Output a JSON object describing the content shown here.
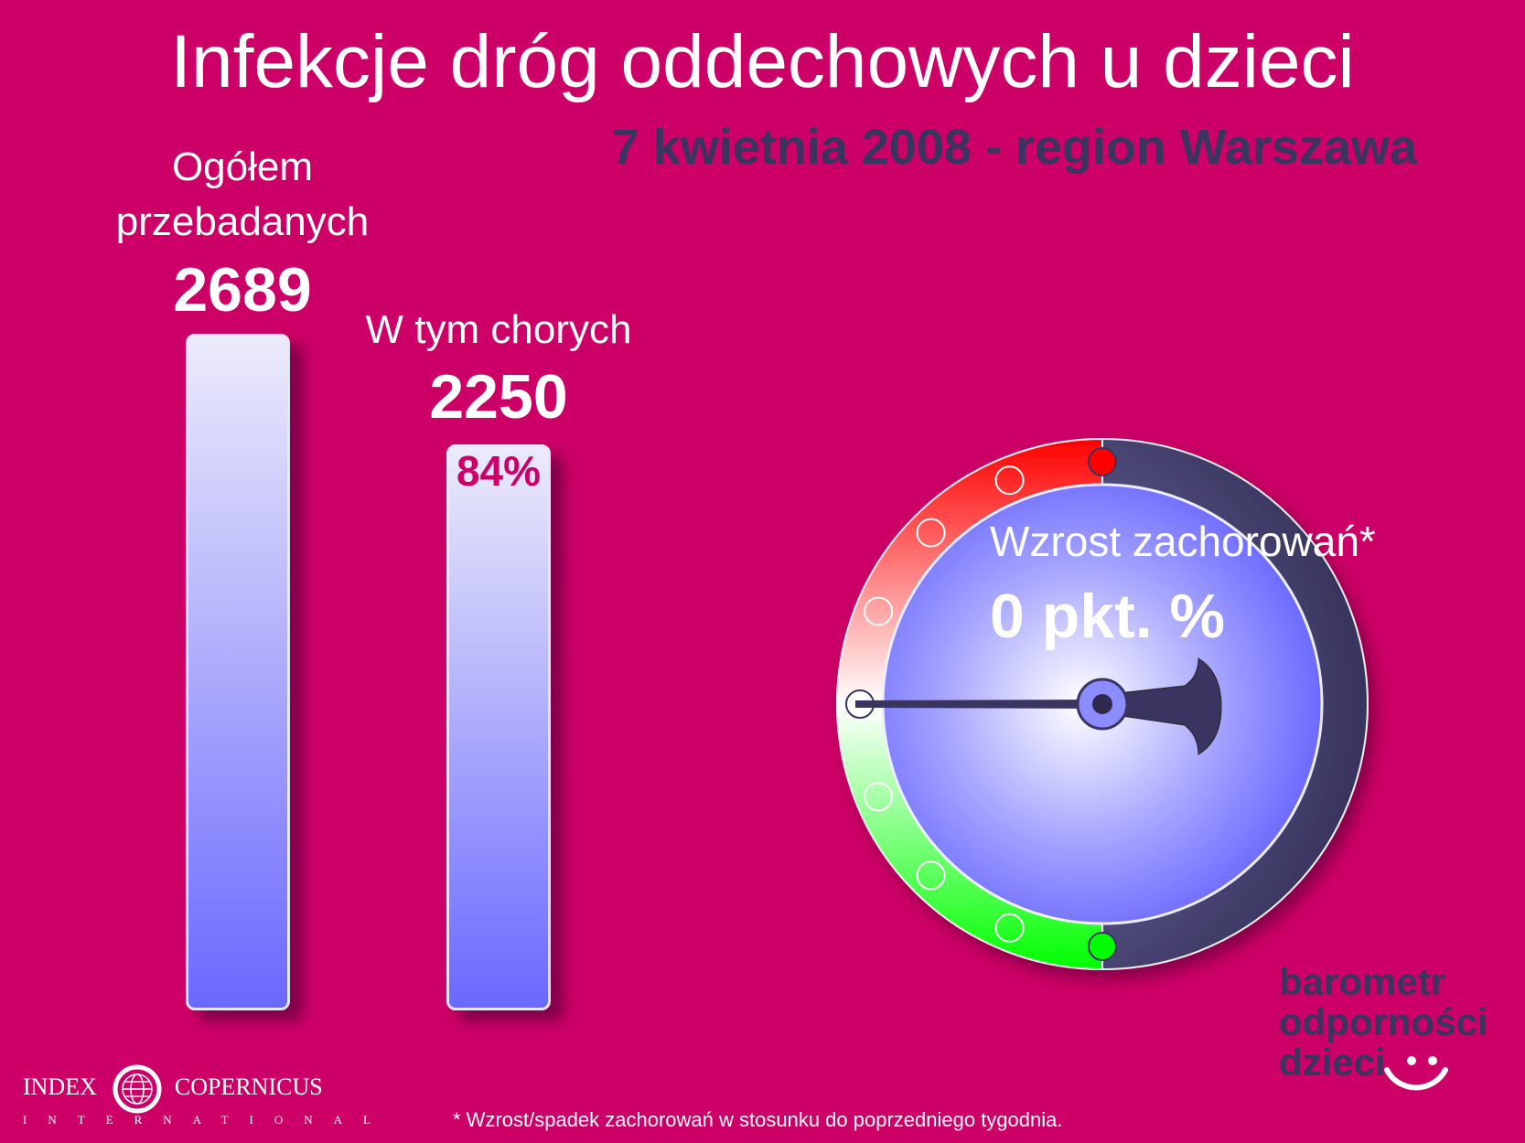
{
  "header": {
    "title": "Infekcje dróg oddechowych u dzieci",
    "subtitle": "7 kwietnia 2008 - region Warszawa"
  },
  "chart_data": [
    {
      "type": "bar",
      "categories": [
        "Ogółem przebadanych",
        "W tym chorych"
      ],
      "label_lines": [
        [
          "Ogółem",
          "przebadanych"
        ],
        [
          "W tym chorych"
        ]
      ],
      "values": [
        2689,
        2250
      ],
      "value_labels": [
        "2689",
        "2250"
      ],
      "percent_label": "84%",
      "percent_value": 84
    },
    {
      "type": "gauge",
      "caption": "Wzrost zachorowań*",
      "value_label": "0 pkt. %",
      "value": 0,
      "colors": {
        "positive": "#ff0000",
        "neutral": "#ffffff",
        "negative": "#00ff00",
        "dial": "#6b6bff",
        "rim": "#3a3460"
      }
    }
  ],
  "footnote": "* Wzrost/spadek zachorowań w stosunku do poprzedniego tygodnia.",
  "logo": {
    "left_word": "INDEX",
    "right_word": "COPERNICUS",
    "sub": "INTERNATIONAL",
    "icon": "globe-icon"
  },
  "brand": {
    "lines": [
      "barometr",
      "odporności",
      "dzieci"
    ],
    "icon": "smiley-icon"
  },
  "colors": {
    "background": "#cc0066",
    "accent_dark": "#3a3460"
  }
}
